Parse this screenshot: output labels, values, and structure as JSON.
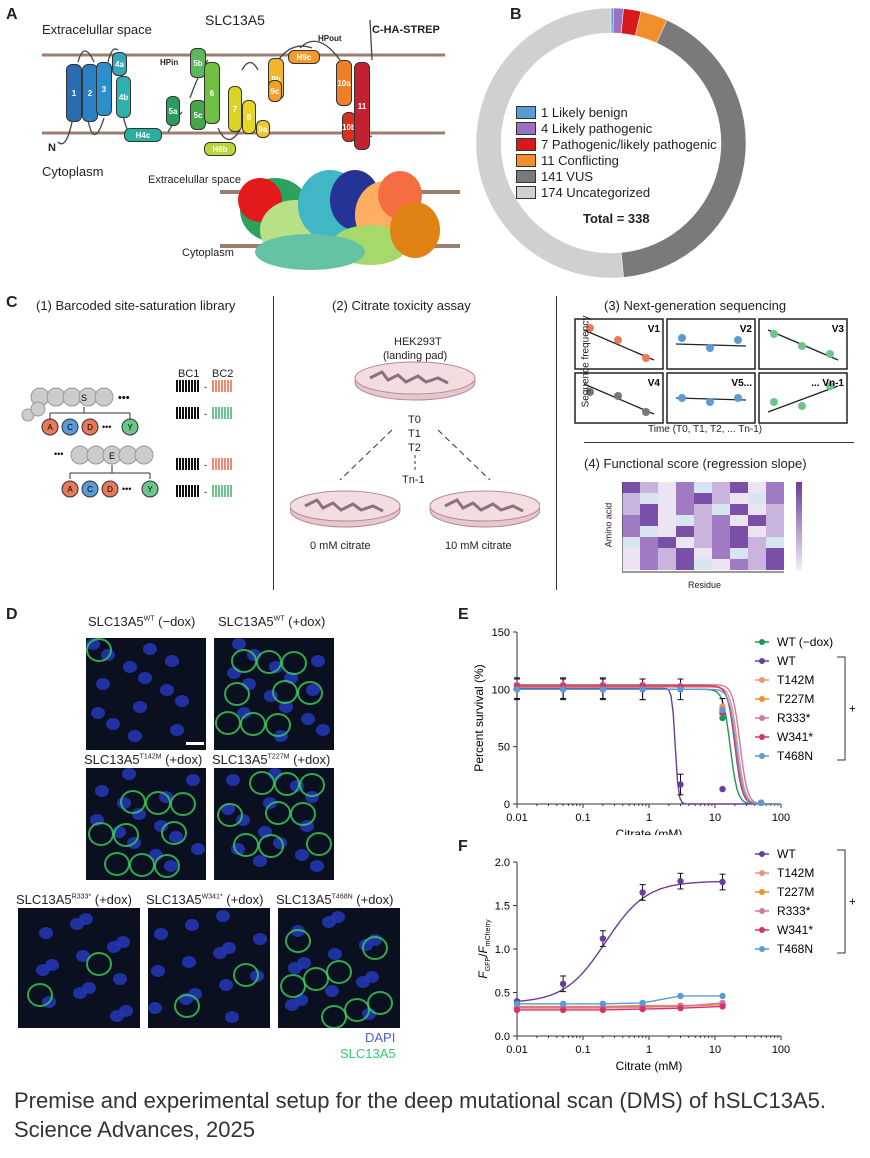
{
  "panels": {
    "a": "A",
    "b": "B",
    "c": "C",
    "d": "D",
    "e": "E",
    "f": "F"
  },
  "panel_a": {
    "title": "SLC13A5",
    "extracellular": "Extracelullar space",
    "cytoplasm": "Cytoplasm",
    "n_term": "N",
    "c_term": "C-HA-STREP",
    "hpin": "HPin",
    "hpout": "HPout",
    "helices": [
      "1",
      "2",
      "3",
      "4a",
      "4b",
      "H4c",
      "5a",
      "5b",
      "5c",
      "6",
      "H6b",
      "7",
      "8",
      "9a",
      "9b",
      "9c",
      "H9c",
      "10a",
      "10b",
      "11"
    ],
    "model_extracellular": "Extracelullar space",
    "model_cytoplasm": "Cytoplasm"
  },
  "panel_b": {
    "legend": [
      {
        "label": "1 Likely benign",
        "color": "#5b9bd5"
      },
      {
        "label": "4 Likely pathogenic",
        "color": "#9b6fc1"
      },
      {
        "label": "7 Pathogenic/likely pathogenic",
        "color": "#d7191c"
      },
      {
        "label": "11 Conflicting",
        "color": "#f28e2b"
      },
      {
        "label": "141 VUS",
        "color": "#7a7a7a"
      },
      {
        "label": "174 Uncategorized",
        "color": "#d0d0d0"
      }
    ],
    "total": "Total = 338"
  },
  "chart_data": [
    {
      "type": "pie",
      "panel": "B",
      "categories": [
        "Likely benign",
        "Likely pathogenic",
        "Pathogenic/likely pathogenic",
        "Conflicting",
        "VUS",
        "Uncategorized"
      ],
      "values": [
        1,
        4,
        7,
        11,
        141,
        174
      ],
      "colors": [
        "#5b9bd5",
        "#9b6fc1",
        "#d7191c",
        "#f28e2b",
        "#7a7a7a",
        "#d0d0d0"
      ],
      "title": "Total = 338"
    },
    {
      "type": "line",
      "panel": "E",
      "xlabel": "Citrate (mM)",
      "ylabel": "Percent survival (%)",
      "xscale": "log",
      "xlim": [
        0.01,
        100
      ],
      "ylim": [
        0,
        150
      ],
      "xticks": [
        "0.01",
        "0.1",
        "1",
        "10",
        "100"
      ],
      "yticks": [
        "0",
        "50",
        "100",
        "150"
      ],
      "x": [
        0.01,
        0.05,
        0.2,
        0.8,
        3,
        13,
        50
      ],
      "series": [
        {
          "name": "WT (−dox)",
          "color": "#1a9850",
          "values": [
            100,
            100,
            100,
            100,
            100,
            75,
            1
          ],
          "ic50": 17
        },
        {
          "name": "WT",
          "color": "#6a3d9a",
          "values": [
            101,
            101,
            101,
            100,
            17,
            13,
            1
          ],
          "ic50": 2.5
        },
        {
          "name": "T142M",
          "color": "#e9967a",
          "values": [
            102,
            102,
            102,
            102,
            101,
            85,
            1
          ],
          "ic50": 22
        },
        {
          "name": "T227M",
          "color": "#f28e2b",
          "values": [
            103,
            103,
            103,
            103,
            102,
            83,
            1
          ],
          "ic50": 20
        },
        {
          "name": "R333*",
          "color": "#cc79a7",
          "values": [
            104,
            104,
            104,
            104,
            103,
            80,
            1
          ],
          "ic50": 24
        },
        {
          "name": "W341*",
          "color": "#d6336c",
          "values": [
            103,
            103,
            103,
            103,
            102,
            80,
            1
          ],
          "ic50": 20
        },
        {
          "name": "T468N",
          "color": "#5b9bd5",
          "values": [
            100,
            100,
            100,
            100,
            100,
            82,
            1
          ],
          "ic50": 21
        }
      ],
      "legend_group": "+dox"
    },
    {
      "type": "line",
      "panel": "F",
      "xlabel": "Citrate (mM)",
      "ylabel_main": "F",
      "ylabel_sub1": "GFP",
      "ylabel_sub2": "mCherry",
      "xscale": "log",
      "xlim": [
        0.01,
        100
      ],
      "ylim": [
        0,
        2.0
      ],
      "xticks": [
        "0.01",
        "0.1",
        "1",
        "10",
        "100"
      ],
      "yticks": [
        "0.0",
        "0.5",
        "1.0",
        "1.5",
        "2.0"
      ],
      "x": [
        0.01,
        0.05,
        0.2,
        0.8,
        3,
        13
      ],
      "series": [
        {
          "name": "WT",
          "color": "#6a3d9a",
          "values": [
            0.4,
            0.6,
            1.12,
            1.65,
            1.78,
            1.77
          ]
        },
        {
          "name": "T142M",
          "color": "#e9967a",
          "values": [
            0.32,
            0.32,
            0.32,
            0.33,
            0.34,
            0.36
          ]
        },
        {
          "name": "T227M",
          "color": "#f28e2b",
          "values": [
            0.34,
            0.34,
            0.34,
            0.35,
            0.35,
            0.36
          ]
        },
        {
          "name": "R333*",
          "color": "#cc79a7",
          "values": [
            0.33,
            0.33,
            0.33,
            0.34,
            0.34,
            0.38
          ]
        },
        {
          "name": "W341*",
          "color": "#d6336c",
          "values": [
            0.3,
            0.3,
            0.3,
            0.31,
            0.32,
            0.34
          ]
        },
        {
          "name": "T468N",
          "color": "#5b9bd5",
          "values": [
            0.37,
            0.37,
            0.37,
            0.38,
            0.46,
            0.46
          ]
        }
      ],
      "legend_group": "+dox"
    }
  ],
  "panel_c": {
    "step1": "(1) Barcoded site-saturation library",
    "step2": "(2) Citrate toxicity assay",
    "step3": "(3) Next-generation sequencing",
    "step4": "(4) Functional score (regression slope)",
    "bc1": "BC1",
    "bc2": "BC2",
    "res_s": "S",
    "res_e": "E",
    "res_a": "A",
    "res_c": "C",
    "res_d": "D",
    "res_y": "Y",
    "dots": "•••",
    "cell_line": "HEK293T",
    "landing_pad": "(landing pad)",
    "timepoints": [
      "T0",
      "T1",
      "T2",
      "Tn-1"
    ],
    "dish_left": "0 mM citrate",
    "dish_right": "10 mM citrate",
    "seq_ylabel": "Sequence frequency",
    "seq_xlabel": "Time (T0, T1, T2, ... Tn-1)",
    "variants": [
      "V1",
      "V2",
      "V3",
      "V4",
      "V5...",
      "... Vn-1"
    ],
    "heat_ylabel": "Amino acid",
    "heat_xlabel": "Residue"
  },
  "panel_d": {
    "labels": [
      {
        "base": "SLC13A5",
        "sup": "WT",
        "tail": " (−dox)"
      },
      {
        "base": "SLC13A5",
        "sup": "WT",
        "tail": " (+dox)"
      },
      {
        "base": "SLC13A5",
        "sup": "T142M",
        "tail": " (+dox)"
      },
      {
        "base": "SLC13A5",
        "sup": "T227M",
        "tail": " (+dox)"
      },
      {
        "base": "SLC13A5",
        "sup": "R333*",
        "tail": " (+dox)"
      },
      {
        "base": "SLC13A5",
        "sup": "W341*",
        "tail": " (+dox)"
      },
      {
        "base": "SLC13A5",
        "sup": "T468N",
        "tail": " (+dox)"
      }
    ],
    "dapi": "DAPI",
    "slc": "SLC13A5",
    "dapi_color": "#4a5fd0",
    "slc_color": "#2ecc71"
  },
  "caption": "Premise and experimental setup for the deep mutational scan (DMS) of hSLC13A5. Science Advances, 2025"
}
